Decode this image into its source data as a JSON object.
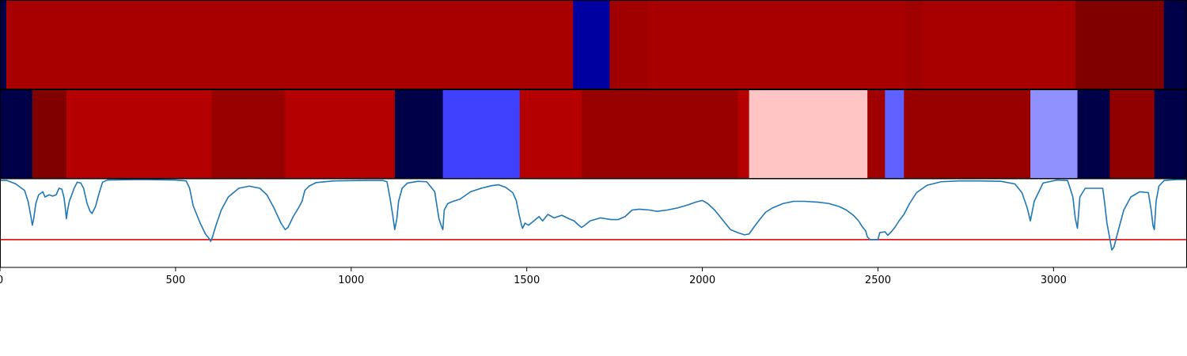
{
  "chart_data": {
    "type": "heatmap",
    "xlim": [
      0,
      3380
    ],
    "x_ticks": [
      {
        "value": 0,
        "label": "0"
      },
      {
        "value": 500,
        "label": "500"
      },
      {
        "value": 1000,
        "label": "1000"
      },
      {
        "value": 1500,
        "label": "1500"
      },
      {
        "value": 2000,
        "label": "2000"
      },
      {
        "value": 2500,
        "label": "2500"
      },
      {
        "value": 3000,
        "label": "3000"
      }
    ],
    "segment_tracks": [
      {
        "name": "",
        "segments": [
          {
            "x0": 0,
            "x1": 18,
            "color": "#000048"
          },
          {
            "x0": 18,
            "x1": 1632,
            "color": "#a80000"
          },
          {
            "x0": 1632,
            "x1": 1736,
            "color": "#0000a0"
          },
          {
            "x0": 1736,
            "x1": 1845,
            "color": "#a00000"
          },
          {
            "x0": 1845,
            "x1": 2577,
            "color": "#a80000"
          },
          {
            "x0": 2577,
            "x1": 2627,
            "color": "#a00000"
          },
          {
            "x0": 2627,
            "x1": 3062,
            "color": "#a80000"
          },
          {
            "x0": 3062,
            "x1": 3314,
            "color": "#800000"
          },
          {
            "x0": 3314,
            "x1": 3380,
            "color": "#000048"
          }
        ]
      },
      {
        "name": "",
        "segments": [
          {
            "x0": 0,
            "x1": 92,
            "color": "#000048"
          },
          {
            "x0": 92,
            "x1": 189,
            "color": "#800000"
          },
          {
            "x0": 189,
            "x1": 603,
            "color": "#b40000"
          },
          {
            "x0": 603,
            "x1": 812,
            "color": "#980000"
          },
          {
            "x0": 812,
            "x1": 1124,
            "color": "#b40000"
          },
          {
            "x0": 1124,
            "x1": 1261,
            "color": "#000048"
          },
          {
            "x0": 1261,
            "x1": 1480,
            "color": "#4040ff"
          },
          {
            "x0": 1480,
            "x1": 1656,
            "color": "#b40000"
          },
          {
            "x0": 1656,
            "x1": 2101,
            "color": "#980000"
          },
          {
            "x0": 2101,
            "x1": 2133,
            "color": "#b40000"
          },
          {
            "x0": 2133,
            "x1": 2470,
            "color": "#ffc4c4"
          },
          {
            "x0": 2470,
            "x1": 2520,
            "color": "#a00000"
          },
          {
            "x0": 2520,
            "x1": 2574,
            "color": "#6060ff"
          },
          {
            "x0": 2574,
            "x1": 2934,
            "color": "#980000"
          },
          {
            "x0": 2934,
            "x1": 3068,
            "color": "#9090ff"
          },
          {
            "x0": 3068,
            "x1": 3160,
            "color": "#000048"
          },
          {
            "x0": 3160,
            "x1": 3287,
            "color": "#900000"
          },
          {
            "x0": 3287,
            "x1": 3380,
            "color": "#000048"
          }
        ]
      }
    ],
    "line": {
      "ylim": [
        -1.0,
        1.0
      ],
      "threshold": -0.38,
      "threshold_color": "#e31a1c",
      "line_color": "#1f77b4",
      "points": [
        [
          0,
          0.98
        ],
        [
          20,
          0.98
        ],
        [
          45,
          0.9
        ],
        [
          70,
          0.75
        ],
        [
          80,
          0.5
        ],
        [
          88,
          0.15
        ],
        [
          92,
          -0.05
        ],
        [
          96,
          0.1
        ],
        [
          102,
          0.45
        ],
        [
          110,
          0.65
        ],
        [
          122,
          0.72
        ],
        [
          128,
          0.6
        ],
        [
          140,
          0.65
        ],
        [
          150,
          0.62
        ],
        [
          160,
          0.65
        ],
        [
          168,
          0.8
        ],
        [
          176,
          0.78
        ],
        [
          182,
          0.6
        ],
        [
          186,
          0.35
        ],
        [
          189,
          0.1
        ],
        [
          193,
          0.32
        ],
        [
          198,
          0.52
        ],
        [
          204,
          0.64
        ],
        [
          211,
          0.8
        ],
        [
          220,
          0.94
        ],
        [
          230,
          0.92
        ],
        [
          238,
          0.8
        ],
        [
          248,
          0.45
        ],
        [
          256,
          0.28
        ],
        [
          262,
          0.22
        ],
        [
          272,
          0.38
        ],
        [
          282,
          0.68
        ],
        [
          292,
          0.94
        ],
        [
          306,
          0.99
        ],
        [
          400,
          1.0
        ],
        [
          500,
          0.99
        ],
        [
          530,
          0.97
        ],
        [
          540,
          0.8
        ],
        [
          550,
          0.4
        ],
        [
          570,
          0.0
        ],
        [
          585,
          -0.25
        ],
        [
          595,
          -0.35
        ],
        [
          600,
          -0.42
        ],
        [
          605,
          -0.32
        ],
        [
          615,
          -0.05
        ],
        [
          630,
          0.3
        ],
        [
          650,
          0.6
        ],
        [
          680,
          0.8
        ],
        [
          710,
          0.85
        ],
        [
          740,
          0.8
        ],
        [
          760,
          0.65
        ],
        [
          780,
          0.35
        ],
        [
          800,
          0.0
        ],
        [
          812,
          -0.15
        ],
        [
          820,
          -0.1
        ],
        [
          835,
          0.15
        ],
        [
          850,
          0.35
        ],
        [
          860,
          0.5
        ],
        [
          868,
          0.75
        ],
        [
          880,
          0.85
        ],
        [
          900,
          0.93
        ],
        [
          950,
          0.97
        ],
        [
          1040,
          0.98
        ],
        [
          1090,
          0.98
        ],
        [
          1102,
          0.95
        ],
        [
          1110,
          0.6
        ],
        [
          1118,
          0.2
        ],
        [
          1124,
          -0.15
        ],
        [
          1130,
          0.1
        ],
        [
          1135,
          0.5
        ],
        [
          1145,
          0.8
        ],
        [
          1160,
          0.92
        ],
        [
          1190,
          0.96
        ],
        [
          1215,
          0.95
        ],
        [
          1238,
          0.72
        ],
        [
          1245,
          0.35
        ],
        [
          1250,
          0.1
        ],
        [
          1256,
          -0.05
        ],
        [
          1261,
          -0.15
        ],
        [
          1265,
          0.3
        ],
        [
          1275,
          0.45
        ],
        [
          1290,
          0.5
        ],
        [
          1310,
          0.55
        ],
        [
          1340,
          0.72
        ],
        [
          1370,
          0.8
        ],
        [
          1400,
          0.86
        ],
        [
          1420,
          0.88
        ],
        [
          1440,
          0.82
        ],
        [
          1460,
          0.7
        ],
        [
          1470,
          0.52
        ],
        [
          1478,
          0.2
        ],
        [
          1485,
          -0.05
        ],
        [
          1488,
          -0.12
        ],
        [
          1495,
          0.0
        ],
        [
          1505,
          -0.05
        ],
        [
          1520,
          0.05
        ],
        [
          1535,
          0.15
        ],
        [
          1545,
          0.05
        ],
        [
          1560,
          0.2
        ],
        [
          1578,
          0.12
        ],
        [
          1600,
          0.18
        ],
        [
          1620,
          0.1
        ],
        [
          1635,
          0.05
        ],
        [
          1648,
          -0.05
        ],
        [
          1656,
          -0.1
        ],
        [
          1665,
          -0.05
        ],
        [
          1680,
          0.05
        ],
        [
          1710,
          0.12
        ],
        [
          1740,
          0.08
        ],
        [
          1760,
          0.08
        ],
        [
          1780,
          0.15
        ],
        [
          1800,
          0.3
        ],
        [
          1820,
          0.32
        ],
        [
          1850,
          0.3
        ],
        [
          1870,
          0.27
        ],
        [
          1900,
          0.3
        ],
        [
          1930,
          0.35
        ],
        [
          1960,
          0.42
        ],
        [
          1980,
          0.48
        ],
        [
          2000,
          0.52
        ],
        [
          2015,
          0.45
        ],
        [
          2035,
          0.3
        ],
        [
          2050,
          0.15
        ],
        [
          2065,
          0.0
        ],
        [
          2080,
          -0.15
        ],
        [
          2101,
          -0.22
        ],
        [
          2120,
          -0.27
        ],
        [
          2133,
          -0.25
        ],
        [
          2148,
          -0.08
        ],
        [
          2165,
          0.1
        ],
        [
          2180,
          0.25
        ],
        [
          2200,
          0.35
        ],
        [
          2230,
          0.45
        ],
        [
          2260,
          0.5
        ],
        [
          2290,
          0.5
        ],
        [
          2330,
          0.48
        ],
        [
          2360,
          0.45
        ],
        [
          2390,
          0.38
        ],
        [
          2410,
          0.3
        ],
        [
          2430,
          0.18
        ],
        [
          2445,
          0.05
        ],
        [
          2455,
          -0.08
        ],
        [
          2465,
          -0.18
        ],
        [
          2470,
          -0.32
        ],
        [
          2478,
          -0.38
        ],
        [
          2500,
          -0.38
        ],
        [
          2505,
          -0.22
        ],
        [
          2520,
          -0.2
        ],
        [
          2528,
          -0.28
        ],
        [
          2538,
          -0.2
        ],
        [
          2548,
          -0.1
        ],
        [
          2560,
          0.05
        ],
        [
          2574,
          0.2
        ],
        [
          2590,
          0.45
        ],
        [
          2610,
          0.7
        ],
        [
          2640,
          0.87
        ],
        [
          2680,
          0.95
        ],
        [
          2730,
          0.97
        ],
        [
          2790,
          0.97
        ],
        [
          2850,
          0.96
        ],
        [
          2890,
          0.9
        ],
        [
          2910,
          0.7
        ],
        [
          2925,
          0.35
        ],
        [
          2934,
          0.05
        ],
        [
          2945,
          0.5
        ],
        [
          2970,
          0.92
        ],
        [
          3010,
          0.99
        ],
        [
          3040,
          0.98
        ],
        [
          3055,
          0.6
        ],
        [
          3062,
          0.1
        ],
        [
          3068,
          -0.12
        ],
        [
          3075,
          0.6
        ],
        [
          3090,
          0.8
        ],
        [
          3120,
          0.8
        ],
        [
          3140,
          0.8
        ],
        [
          3145,
          0.5
        ],
        [
          3152,
          0.0
        ],
        [
          3160,
          -0.35
        ],
        [
          3166,
          -0.62
        ],
        [
          3172,
          -0.55
        ],
        [
          3180,
          -0.3
        ],
        [
          3190,
          0.0
        ],
        [
          3200,
          0.3
        ],
        [
          3220,
          0.6
        ],
        [
          3245,
          0.72
        ],
        [
          3270,
          0.7
        ],
        [
          3278,
          0.3
        ],
        [
          3283,
          -0.05
        ],
        [
          3287,
          -0.15
        ],
        [
          3292,
          0.5
        ],
        [
          3300,
          0.85
        ],
        [
          3315,
          0.98
        ],
        [
          3350,
          1.0
        ],
        [
          3380,
          1.0
        ]
      ]
    }
  }
}
